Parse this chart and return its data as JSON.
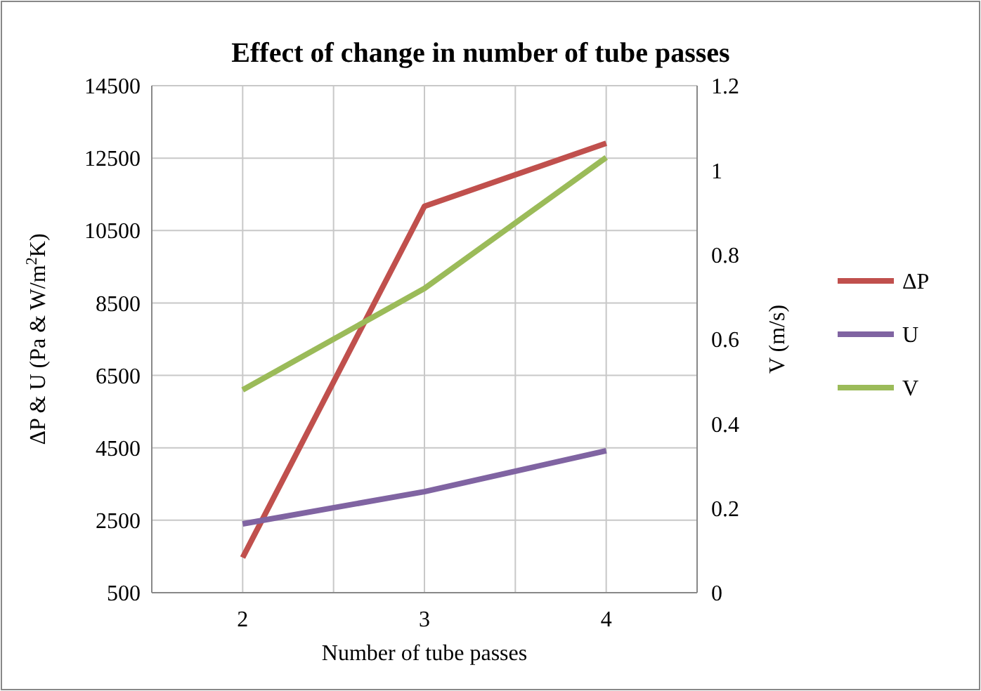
{
  "chart_data": {
    "type": "line",
    "title": "Effect of change in number of tube passes",
    "xlabel": "Number of tube passes",
    "ylabel": "ΔP & U (Pa & W/m$^{2}$K)",
    "y2label": "V (m/s)",
    "categories": [
      "2",
      "3",
      "4"
    ],
    "series": [
      {
        "name": "ΔP",
        "color": "#c0504d",
        "values": [
          1470,
          11170,
          12910
        ]
      },
      {
        "name": "U",
        "color": "#8064a2",
        "values": [
          2400,
          3290,
          4420
        ]
      },
      {
        "name": "V",
        "color": "#9bbb59",
        "values": [
          0.48,
          0.72,
          1.03
        ],
        "axis": "y2"
      }
    ],
    "ylim": [
      500,
      14500
    ],
    "yticks": [
      500,
      2500,
      4500,
      6500,
      8500,
      10500,
      12500,
      14500
    ],
    "y2lim": [
      0,
      1.2
    ],
    "y2ticks": [
      0,
      0.2,
      0.4,
      0.6,
      0.8,
      1,
      1.2
    ],
    "grid": true,
    "legend": "right",
    "marker": "none",
    "line_style": "solid"
  }
}
